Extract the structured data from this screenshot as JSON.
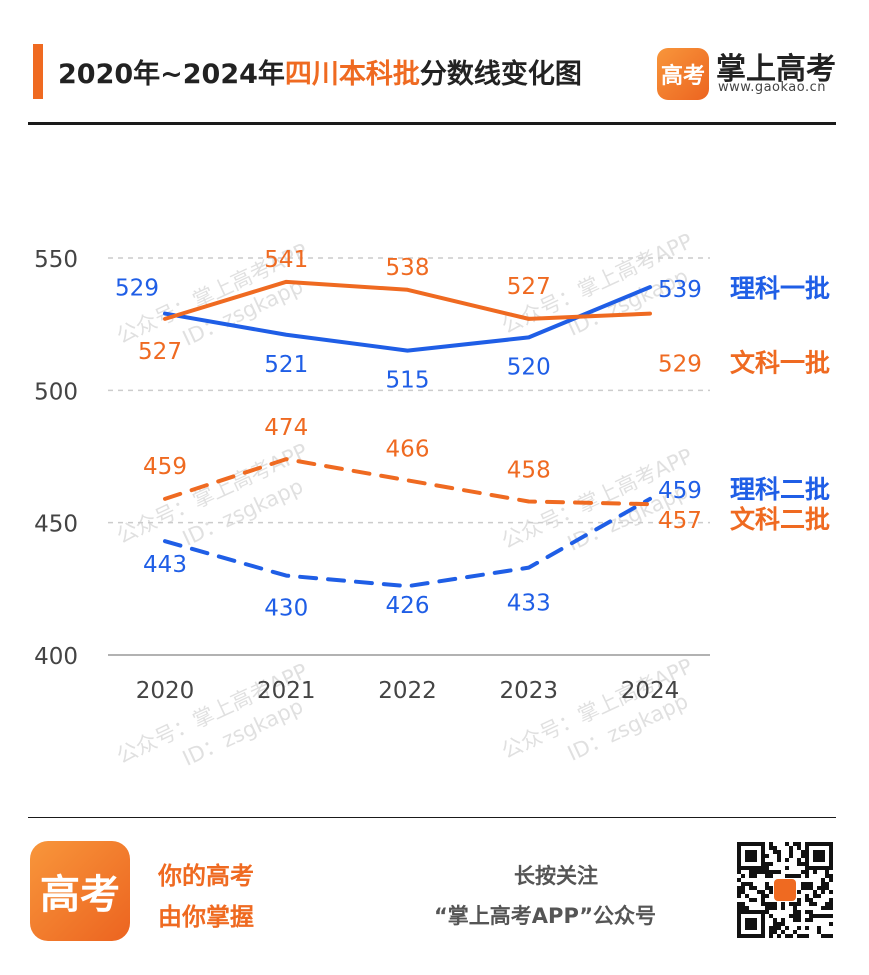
{
  "header": {
    "title_prefix": "2020年~2024年",
    "title_highlight": "四川本科批",
    "title_suffix": "分数线变化图"
  },
  "brand": {
    "logo_text": "高考",
    "name": "掌上高考",
    "url": "www.gaokao.cn"
  },
  "watermark": {
    "line1": "公众号：掌上高考APP",
    "line2": "ID：zsgkapp"
  },
  "footer": {
    "logo_text": "高考",
    "slogan_line1": "你的高考",
    "slogan_line2": "由你掌握",
    "follow_line1": "长按关注",
    "follow_line2": "“掌上高考APP”公众号"
  },
  "colors": {
    "blue": "#1f5ee6",
    "orange": "#ef6a21",
    "grid": "#cccccc",
    "axis_text": "#444444"
  },
  "chart_data": {
    "type": "line",
    "x": [
      "2020",
      "2021",
      "2022",
      "2023",
      "2024"
    ],
    "y_ticks": [
      400,
      450,
      500,
      550
    ],
    "ylim": [
      400,
      550
    ],
    "grid": true,
    "series": [
      {
        "name": "理科一批",
        "color": "#1f5ee6",
        "dashed": false,
        "values": [
          529,
          521,
          515,
          520,
          539
        ]
      },
      {
        "name": "文科一批",
        "color": "#ef6a21",
        "dashed": false,
        "values": [
          527,
          541,
          538,
          527,
          529
        ]
      },
      {
        "name": "理科二批",
        "color": "#1f5ee6",
        "dashed": true,
        "values": [
          443,
          430,
          426,
          433,
          459
        ]
      },
      {
        "name": "文科二批",
        "color": "#ef6a21",
        "dashed": true,
        "values": [
          459,
          474,
          466,
          458,
          457
        ]
      }
    ]
  }
}
